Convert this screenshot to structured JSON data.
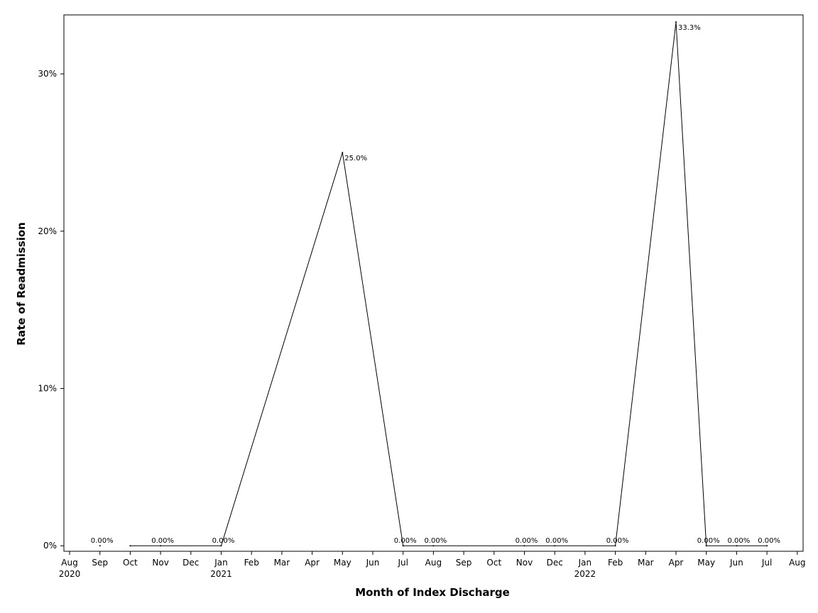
{
  "chart_data": {
    "type": "line",
    "title": "",
    "xlabel": "Month of Index Discharge",
    "ylabel": "Rate of Readmission",
    "x_axis": {
      "min": "2020-08",
      "max": "2022-08",
      "ticks": [
        {
          "month": "2020-08",
          "label": "Aug",
          "year_label": "2020"
        },
        {
          "month": "2020-09",
          "label": "Sep",
          "year_label": ""
        },
        {
          "month": "2020-10",
          "label": "Oct",
          "year_label": ""
        },
        {
          "month": "2020-11",
          "label": "Nov",
          "year_label": ""
        },
        {
          "month": "2020-12",
          "label": "Dec",
          "year_label": ""
        },
        {
          "month": "2021-01",
          "label": "Jan",
          "year_label": "2021"
        },
        {
          "month": "2021-02",
          "label": "Feb",
          "year_label": ""
        },
        {
          "month": "2021-03",
          "label": "Mar",
          "year_label": ""
        },
        {
          "month": "2021-04",
          "label": "Apr",
          "year_label": ""
        },
        {
          "month": "2021-05",
          "label": "May",
          "year_label": ""
        },
        {
          "month": "2021-06",
          "label": "Jun",
          "year_label": ""
        },
        {
          "month": "2021-07",
          "label": "Jul",
          "year_label": ""
        },
        {
          "month": "2021-08",
          "label": "Aug",
          "year_label": ""
        },
        {
          "month": "2021-09",
          "label": "Sep",
          "year_label": ""
        },
        {
          "month": "2021-10",
          "label": "Oct",
          "year_label": ""
        },
        {
          "month": "2021-11",
          "label": "Nov",
          "year_label": ""
        },
        {
          "month": "2021-12",
          "label": "Dec",
          "year_label": ""
        },
        {
          "month": "2022-01",
          "label": "Jan",
          "year_label": "2022"
        },
        {
          "month": "2022-02",
          "label": "Feb",
          "year_label": ""
        },
        {
          "month": "2022-03",
          "label": "Mar",
          "year_label": ""
        },
        {
          "month": "2022-04",
          "label": "Apr",
          "year_label": ""
        },
        {
          "month": "2022-05",
          "label": "May",
          "year_label": ""
        },
        {
          "month": "2022-06",
          "label": "Jun",
          "year_label": ""
        },
        {
          "month": "2022-07",
          "label": "Jul",
          "year_label": ""
        },
        {
          "month": "2022-08",
          "label": "Aug",
          "year_label": ""
        }
      ]
    },
    "y_axis": {
      "min": -0.0035,
      "max": 0.3375,
      "ticks": [
        {
          "value": 0,
          "label": "0%"
        },
        {
          "value": 0.1,
          "label": "10%"
        },
        {
          "value": 0.2,
          "label": "20%"
        },
        {
          "value": 0.3,
          "label": "30%"
        }
      ]
    },
    "grid": false,
    "legend": "none",
    "series": [
      {
        "color": "#000000",
        "segments": [
          [
            {
              "x": "2020-10",
              "y": 0,
              "label": ""
            },
            {
              "x": "2020-11",
              "y": 0,
              "label": "0.00%"
            },
            {
              "x": "2021-01",
              "y": 0,
              "label": "0.00%"
            },
            {
              "x": "2021-05",
              "y": 0.25,
              "label": "25.0%"
            },
            {
              "x": "2021-07",
              "y": 0,
              "label": "0.00%"
            },
            {
              "x": "2021-08",
              "y": 0,
              "label": "0.00%"
            },
            {
              "x": "2021-11",
              "y": 0,
              "label": "0.00%"
            },
            {
              "x": "2021-12",
              "y": 0,
              "label": "0.00%"
            },
            {
              "x": "2022-02",
              "y": 0,
              "label": "0.00%"
            },
            {
              "x": "2022-04",
              "y": 0.333,
              "label": "33.3%"
            },
            {
              "x": "2022-05",
              "y": 0,
              "label": "0.00%"
            },
            {
              "x": "2022-06",
              "y": 0,
              "label": "0.00%"
            },
            {
              "x": "2022-07",
              "y": 0,
              "label": "0.00%"
            }
          ]
        ],
        "isolated_points": [
          {
            "x": "2020-09",
            "y": 0,
            "label": "0.00%"
          }
        ]
      }
    ]
  }
}
